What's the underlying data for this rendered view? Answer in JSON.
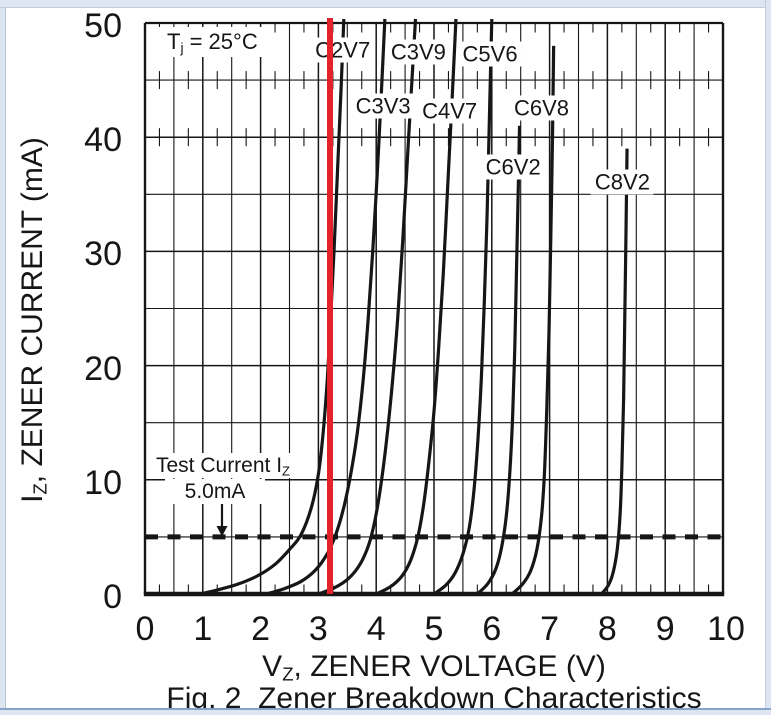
{
  "page": {
    "caption": "Fig. 2  Zener Breakdown Characteristics"
  },
  "chart_data": {
    "type": "line",
    "title": "Fig. 2  Zener Breakdown Characteristics",
    "xlabel": {
      "pre": "V",
      "sub": "Z",
      "post": ", ZENER VOLTAGE (V)"
    },
    "ylabel": {
      "pre": "I",
      "sub": "Z",
      "post": ", ZENER CURRENT (mA)"
    },
    "xlim": [
      0,
      10
    ],
    "ylim": [
      0,
      50
    ],
    "x_ticks": [
      0,
      1,
      2,
      3,
      4,
      5,
      6,
      7,
      8,
      9,
      10
    ],
    "y_ticks": [
      0,
      10,
      20,
      30,
      40,
      50
    ],
    "x_minor_step_V": 0.5,
    "x_fine_tick_step_V": 0.25,
    "y_minor_step_mA": 5,
    "grid": "on",
    "condition": {
      "pre": "T",
      "sub": "j",
      "post": " = 25°C"
    },
    "test_current": {
      "label_pre": "Test Current I",
      "label_sub": "Z",
      "value": "5.0mA",
      "level_mA": 5
    },
    "red_marker_V": 3.2,
    "colors": {
      "ink": "#161616",
      "red": "#e2232b"
    },
    "series": [
      {
        "name": "C2V7",
        "label": {
          "v": 3.42,
          "i": 47.6
        },
        "points": [
          [
            0.95,
            0
          ],
          [
            1.25,
            0.35
          ],
          [
            1.6,
            0.85
          ],
          [
            1.95,
            1.6
          ],
          [
            2.25,
            2.6
          ],
          [
            2.5,
            3.9
          ],
          [
            2.7,
            5.2
          ],
          [
            2.88,
            7.6
          ],
          [
            3.0,
            10.5
          ],
          [
            3.08,
            14
          ],
          [
            3.15,
            18.5
          ],
          [
            3.21,
            24
          ],
          [
            3.27,
            30
          ],
          [
            3.33,
            37
          ],
          [
            3.39,
            44
          ],
          [
            3.44,
            50.8
          ]
        ]
      },
      {
        "name": "C3V3",
        "label": {
          "v": 4.12,
          "i": 42.7
        },
        "points": [
          [
            2.1,
            0
          ],
          [
            2.4,
            0.45
          ],
          [
            2.7,
            1.1
          ],
          [
            2.95,
            2.1
          ],
          [
            3.15,
            3.5
          ],
          [
            3.3,
            5.2
          ],
          [
            3.44,
            7.6
          ],
          [
            3.56,
            10.5
          ],
          [
            3.67,
            14
          ],
          [
            3.77,
            18.5
          ],
          [
            3.86,
            24
          ],
          [
            3.94,
            30
          ],
          [
            4.02,
            37
          ],
          [
            4.09,
            44
          ],
          [
            4.15,
            50.8
          ]
        ]
      },
      {
        "name": "C3V9",
        "label": {
          "v": 4.73,
          "i": 47.5
        },
        "points": [
          [
            3.0,
            0
          ],
          [
            3.28,
            0.55
          ],
          [
            3.52,
            1.35
          ],
          [
            3.72,
            2.6
          ],
          [
            3.87,
            4.3
          ],
          [
            3.98,
            6.5
          ],
          [
            4.08,
            9.5
          ],
          [
            4.18,
            13.5
          ],
          [
            4.28,
            18.5
          ],
          [
            4.37,
            24
          ],
          [
            4.46,
            31
          ],
          [
            4.55,
            39
          ],
          [
            4.63,
            46
          ],
          [
            4.68,
            50.8
          ]
        ]
      },
      {
        "name": "C4V7",
        "label": {
          "v": 5.27,
          "i": 42.3
        },
        "points": [
          [
            4.0,
            0
          ],
          [
            4.25,
            0.65
          ],
          [
            4.45,
            1.6
          ],
          [
            4.6,
            3.0
          ],
          [
            4.72,
            5.0
          ],
          [
            4.82,
            7.8
          ],
          [
            4.91,
            11.5
          ],
          [
            5.0,
            16
          ],
          [
            5.08,
            21.5
          ],
          [
            5.16,
            28
          ],
          [
            5.24,
            36
          ],
          [
            5.31,
            43
          ],
          [
            5.38,
            50.8
          ]
        ]
      },
      {
        "name": "C5V6",
        "label": {
          "v": 5.97,
          "i": 47.3
        },
        "points": [
          [
            5.0,
            0
          ],
          [
            5.2,
            0.75
          ],
          [
            5.36,
            1.8
          ],
          [
            5.5,
            3.5
          ],
          [
            5.61,
            5.8
          ],
          [
            5.69,
            9
          ],
          [
            5.76,
            13.5
          ],
          [
            5.82,
            19
          ],
          [
            5.87,
            25.5
          ],
          [
            5.92,
            33.5
          ],
          [
            5.96,
            42
          ],
          [
            6.0,
            50.8
          ]
        ]
      },
      {
        "name": "C6V2",
        "label": {
          "v": 6.37,
          "i": 37.4
        },
        "points": [
          [
            5.75,
            0
          ],
          [
            5.93,
            0.9
          ],
          [
            6.07,
            2.2
          ],
          [
            6.17,
            4.1
          ],
          [
            6.25,
            6.8
          ],
          [
            6.31,
            10.5
          ],
          [
            6.36,
            15.5
          ],
          [
            6.4,
            22
          ],
          [
            6.43,
            29
          ],
          [
            6.46,
            36
          ],
          [
            6.48,
            41
          ]
        ]
      },
      {
        "name": "C6V8",
        "label": {
          "v": 6.86,
          "i": 42.6
        },
        "points": [
          [
            6.35,
            0
          ],
          [
            6.53,
            0.85
          ],
          [
            6.67,
            2.0
          ],
          [
            6.78,
            3.9
          ],
          [
            6.86,
            6.8
          ],
          [
            6.91,
            10.5
          ],
          [
            6.95,
            16
          ],
          [
            6.99,
            23
          ],
          [
            7.02,
            31
          ],
          [
            7.05,
            40
          ],
          [
            7.07,
            48
          ]
        ]
      },
      {
        "name": "C8V2",
        "label": {
          "v": 8.26,
          "i": 36.1
        },
        "points": [
          [
            7.9,
            0
          ],
          [
            8.02,
            0.8
          ],
          [
            8.1,
            1.9
          ],
          [
            8.17,
            3.9
          ],
          [
            8.22,
            7
          ],
          [
            8.25,
            11
          ],
          [
            8.28,
            17
          ],
          [
            8.3,
            24
          ],
          [
            8.32,
            31
          ],
          [
            8.34,
            39
          ]
        ]
      }
    ]
  }
}
